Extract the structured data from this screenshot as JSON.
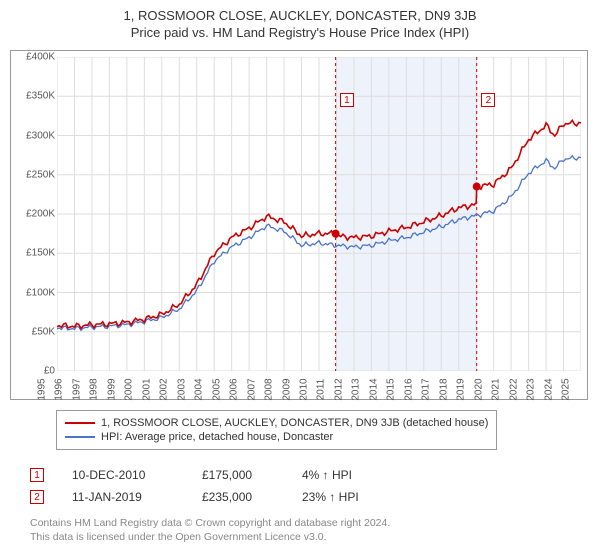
{
  "title_line1": "1, ROSSMOOR CLOSE, AUCKLEY, DONCASTER, DN9 3JB",
  "title_line2": "Price paid vs. HM Land Registry's House Price Index (HPI)",
  "chart": {
    "type": "line",
    "background_color": "#ffffff",
    "x_axis": {
      "min_year": 1995,
      "max_year": 2025,
      "ticks": [
        1995,
        1996,
        1997,
        1998,
        1999,
        2000,
        2001,
        2002,
        2003,
        2004,
        2005,
        2006,
        2007,
        2008,
        2009,
        2010,
        2011,
        2012,
        2013,
        2014,
        2015,
        2016,
        2017,
        2018,
        2019,
        2020,
        2021,
        2022,
        2023,
        2024,
        2025
      ],
      "label_fontsize": 10,
      "label_color": "#555555",
      "tick_rotation": -90
    },
    "y_axis": {
      "min": 0,
      "max": 400000,
      "ticks": [
        0,
        50000,
        100000,
        150000,
        200000,
        250000,
        300000,
        350000,
        400000
      ],
      "tick_labels": [
        "£0",
        "£50K",
        "£100K",
        "£150K",
        "£200K",
        "£250K",
        "£300K",
        "£350K",
        "£400K"
      ],
      "label_fontsize": 10,
      "label_color": "#555555"
    },
    "gridlines": {
      "show": true,
      "color": "#dddddd",
      "width": 1
    },
    "shaded_band": {
      "from_year": 2010.95,
      "to_year": 2019.03,
      "fill": "#eef3fb"
    },
    "dashed_markers": [
      {
        "year": 2010.95,
        "color": "#cc0000",
        "dash": "3,3"
      },
      {
        "year": 2019.03,
        "color": "#cc0000",
        "dash": "3,3"
      }
    ],
    "marker_boxes": [
      {
        "id": "1",
        "year": 2011.6,
        "y": 345000,
        "border": "#cc0000",
        "text_color": "#cc0000"
      },
      {
        "id": "2",
        "year": 2019.7,
        "y": 345000,
        "border": "#cc0000",
        "text_color": "#cc0000"
      }
    ],
    "series": [
      {
        "name": "property_price",
        "label": "1, ROSSMOOR CLOSE, AUCKLEY, DONCASTER, DN9 3JB (detached house)",
        "color": "#cc0000",
        "line_width": 1.6,
        "points_year_value": [
          [
            1995,
            58000
          ],
          [
            1996,
            57000
          ],
          [
            1997,
            59000
          ],
          [
            1998,
            60000
          ],
          [
            1999,
            62000
          ],
          [
            2000,
            66000
          ],
          [
            2001,
            72000
          ],
          [
            2002,
            85000
          ],
          [
            2003,
            110000
          ],
          [
            2004,
            150000
          ],
          [
            2005,
            170000
          ],
          [
            2006,
            182000
          ],
          [
            2007,
            197000
          ],
          [
            2008,
            190000
          ],
          [
            2009,
            172000
          ],
          [
            2010,
            175000
          ],
          [
            2010.95,
            175000
          ],
          [
            2011,
            172000
          ],
          [
            2012,
            170000
          ],
          [
            2013,
            172000
          ],
          [
            2014,
            178000
          ],
          [
            2015,
            183000
          ],
          [
            2016,
            190000
          ],
          [
            2017,
            198000
          ],
          [
            2018,
            208000
          ],
          [
            2019,
            212000
          ],
          [
            2019.03,
            235000
          ],
          [
            2020,
            238000
          ],
          [
            2021,
            258000
          ],
          [
            2022,
            295000
          ],
          [
            2023,
            313000
          ],
          [
            2023.5,
            300000
          ],
          [
            2024,
            315000
          ],
          [
            2025,
            316000
          ]
        ],
        "sale_dots": [
          {
            "year": 2010.95,
            "value": 175000,
            "radius": 4,
            "fill": "#cc0000"
          },
          {
            "year": 2019.03,
            "value": 235000,
            "radius": 4,
            "fill": "#cc0000"
          }
        ]
      },
      {
        "name": "hpi_doncaster_detached",
        "label": "HPI: Average price, detached house, Doncaster",
        "color": "#4a74c9",
        "line_width": 1.3,
        "points_year_value": [
          [
            1995,
            55000
          ],
          [
            1996,
            54000
          ],
          [
            1997,
            56000
          ],
          [
            1998,
            57000
          ],
          [
            1999,
            59000
          ],
          [
            2000,
            63000
          ],
          [
            2001,
            68000
          ],
          [
            2002,
            79000
          ],
          [
            2003,
            102000
          ],
          [
            2004,
            140000
          ],
          [
            2005,
            158000
          ],
          [
            2006,
            170000
          ],
          [
            2007,
            185000
          ],
          [
            2008,
            178000
          ],
          [
            2009,
            160000
          ],
          [
            2010,
            163000
          ],
          [
            2011,
            160000
          ],
          [
            2012,
            158000
          ],
          [
            2013,
            160000
          ],
          [
            2014,
            166000
          ],
          [
            2015,
            170000
          ],
          [
            2016,
            177000
          ],
          [
            2017,
            184000
          ],
          [
            2018,
            193000
          ],
          [
            2019,
            198000
          ],
          [
            2020,
            204000
          ],
          [
            2021,
            222000
          ],
          [
            2022,
            252000
          ],
          [
            2023,
            268000
          ],
          [
            2023.5,
            258000
          ],
          [
            2024,
            270000
          ],
          [
            2025,
            272000
          ]
        ]
      }
    ]
  },
  "legend": {
    "rows": [
      {
        "color": "#cc0000",
        "text": "1, ROSSMOOR CLOSE, AUCKLEY, DONCASTER, DN9 3JB (detached house)"
      },
      {
        "color": "#4a74c9",
        "text": "HPI: Average price, detached house, Doncaster"
      }
    ],
    "fontsize": 11
  },
  "sales": [
    {
      "marker": "1",
      "color": "#cc0000",
      "date": "10-DEC-2010",
      "price": "£175,000",
      "hpi_delta": "4% ↑ HPI"
    },
    {
      "marker": "2",
      "color": "#cc0000",
      "date": "11-JAN-2019",
      "price": "£235,000",
      "hpi_delta": "23% ↑ HPI"
    }
  ],
  "footer": {
    "line1": "Contains HM Land Registry data © Crown copyright and database right 2024.",
    "line2": "This data is licensed under the Open Government Licence v3.0."
  }
}
